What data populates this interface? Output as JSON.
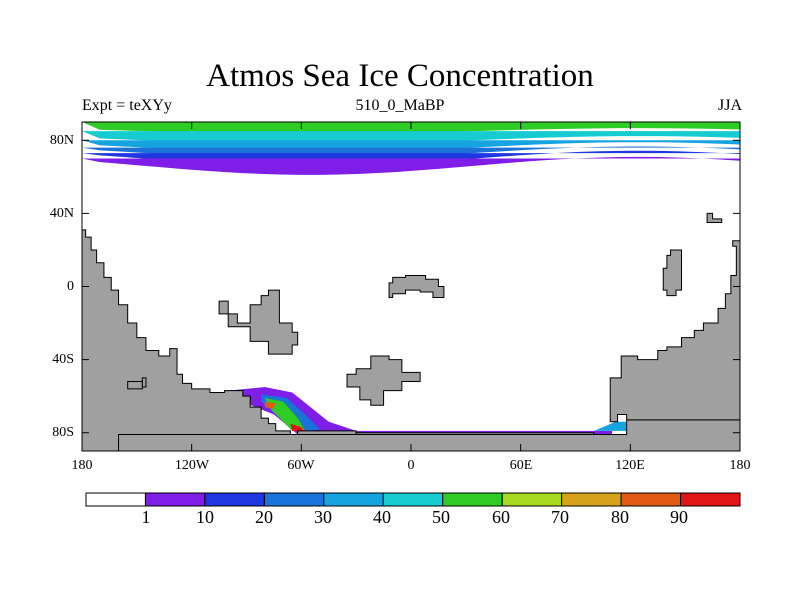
{
  "title": "Atmos Sea Ice Concentration",
  "subtitle_left": "Expt = teXYy",
  "subtitle_center": "510_0_MaBP",
  "subtitle_right": "JJA",
  "map": {
    "projection": "cylindrical-equidistant",
    "land_color": "#a0a0a0",
    "ocean_color": "#ffffff",
    "lat_ticks": [
      "80N",
      "40N",
      "0",
      "40S",
      "80S"
    ],
    "lon_ticks": [
      "180",
      "120W",
      "60W",
      "0",
      "60E",
      "120E",
      "180"
    ],
    "lat_range": [
      -90,
      90
    ],
    "lon_range": [
      -180,
      180
    ]
  },
  "colorbar": {
    "colors": [
      "#ffffff",
      "#7f1ee6",
      "#1f37e0",
      "#1a73d9",
      "#16a4e0",
      "#16ccd0",
      "#2ecc24",
      "#a8d81e",
      "#d8a31a",
      "#e05a12",
      "#e01414"
    ],
    "labels": [
      "1",
      "10",
      "20",
      "30",
      "40",
      "50",
      "60",
      "70",
      "80",
      "90"
    ]
  },
  "chart_data": {
    "type": "heatmap",
    "title": "Atmos Sea Ice Concentration",
    "variable": "sea ice concentration",
    "season": "JJA",
    "levels": [
      1,
      10,
      20,
      30,
      40,
      50,
      60,
      70,
      80,
      90
    ],
    "northern_band": [
      {
        "lat_from": 90,
        "lat_to": 85,
        "value": 55
      },
      {
        "lat_from": 85,
        "lat_to": 80,
        "value": 45
      },
      {
        "lat_from": 80,
        "lat_to": 76,
        "value": 35
      },
      {
        "lat_from": 76,
        "lat_to": 73,
        "value": 25
      },
      {
        "lat_from": 73,
        "lat_to": 70,
        "value": 15
      },
      {
        "lat_from": 70,
        "lat_to": 66,
        "value": 5
      }
    ],
    "southern_band": [
      {
        "lon_from": -160,
        "lon_to": -30,
        "lat": -60,
        "value": 5
      },
      {
        "lon_from": -80,
        "lon_to": -60,
        "lat": -70,
        "value": 80
      },
      {
        "lon_from": -30,
        "lon_to": 110,
        "lat": -80,
        "value": 5
      }
    ]
  }
}
